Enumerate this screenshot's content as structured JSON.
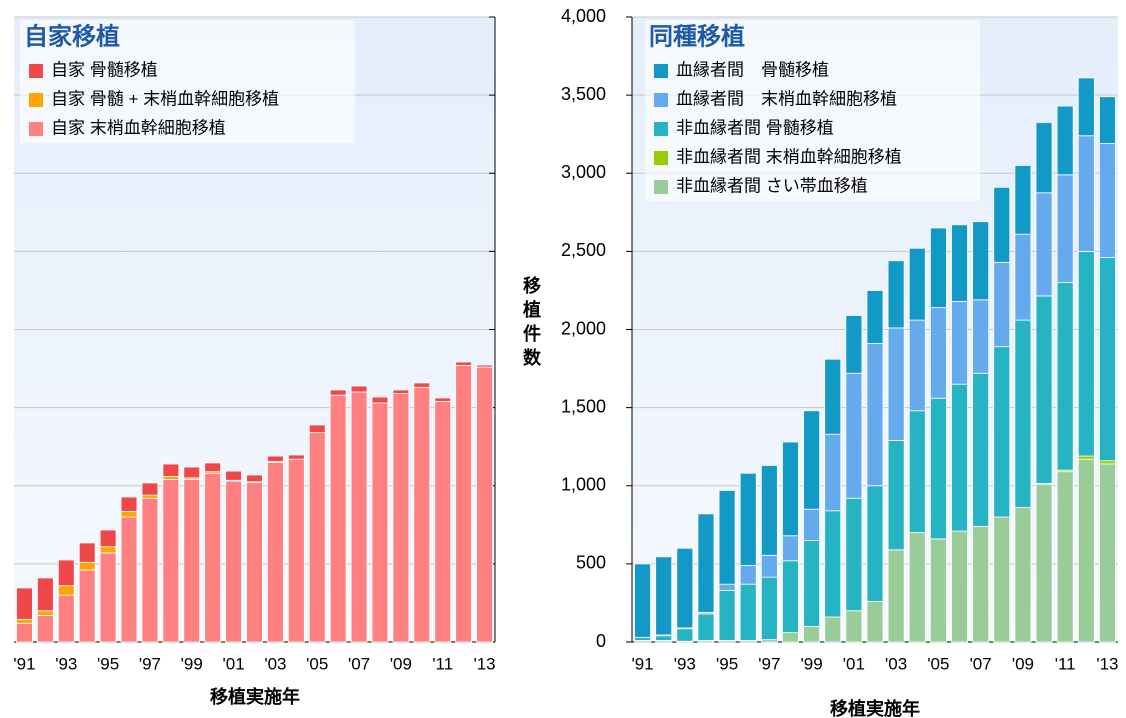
{
  "chart_data": [
    {
      "type": "stacked_bar",
      "title": "自家移植",
      "xlabel": "移植実施年",
      "categories": [
        "'91",
        null,
        "'93",
        null,
        "'95",
        null,
        "'97",
        null,
        "'99",
        null,
        "'01",
        null,
        "'03",
        null,
        "'05",
        null,
        "'07",
        null,
        "'09",
        null,
        "'11",
        null,
        "'13"
      ],
      "ylim": [
        0,
        4000
      ],
      "series": [
        {
          "name": "自家 骨髄移植",
          "color": "#f04848",
          "values": [
            201,
            210,
            165,
            124,
            107,
            93,
            78,
            79,
            70,
            56,
            59,
            44,
            35,
            27,
            49,
            33,
            38,
            38,
            23,
            28,
            22,
            22,
            13
          ]
        },
        {
          "name": "自家 骨髄 + 末梢血幹細胞移植",
          "color": "#ffa500",
          "values": [
            25,
            30,
            60,
            50,
            40,
            35,
            20,
            20,
            10,
            10,
            5,
            5,
            5,
            0,
            0,
            0,
            0,
            0,
            0,
            0,
            0,
            0,
            0
          ]
        },
        {
          "name": "自家 末梢血幹細胞移植",
          "color": "#ff8080",
          "values": [
            120,
            170,
            300,
            460,
            570,
            800,
            920,
            1040,
            1040,
            1080,
            1030,
            1020,
            1150,
            1170,
            1340,
            1580,
            1600,
            1530,
            1590,
            1630,
            1540,
            1770,
            1760
          ]
        }
      ]
    },
    {
      "type": "stacked_bar",
      "title": "同種移植",
      "xlabel": "移植実施年",
      "ylabel": "移植件数",
      "categories": [
        "'91",
        null,
        "'93",
        null,
        "'95",
        null,
        "'97",
        null,
        "'99",
        null,
        "'01",
        null,
        "'03",
        null,
        "'05",
        null,
        "'07",
        null,
        "'09",
        null,
        "'11",
        null,
        "'13"
      ],
      "ylim": [
        0,
        4000
      ],
      "yticks": [
        0,
        500,
        {
          "value": 1000,
          "label": "1,000"
        },
        {
          "value": 1500,
          "label": "1,500"
        },
        {
          "value": 2000,
          "label": "2,000"
        },
        {
          "value": 2500,
          "label": "2,500"
        },
        {
          "value": 3000,
          "label": "3,000"
        },
        {
          "value": 3500,
          "label": "3,500"
        },
        {
          "value": 4000,
          "label": "4,000"
        }
      ],
      "grid": true,
      "series": [
        {
          "name": "血縁者間　骨髄移植",
          "color": "#1399c6",
          "values": [
            470,
            500,
            510,
            630,
            600,
            590,
            575,
            600,
            630,
            480,
            370,
            340,
            430,
            460,
            510,
            490,
            500,
            480,
            440,
            450,
            440,
            370,
            300
          ]
        },
        {
          "name": "血縁者間　末梢血幹細胞移植",
          "color": "#66aaee",
          "values": [
            0,
            5,
            5,
            10,
            40,
            120,
            140,
            160,
            200,
            490,
            800,
            910,
            720,
            580,
            580,
            530,
            470,
            540,
            550,
            660,
            690,
            740,
            730
          ]
        },
        {
          "name": "非血縁者間 骨髄移植",
          "color": "#26b3c4",
          "values": [
            20,
            30,
            80,
            170,
            320,
            360,
            400,
            460,
            550,
            680,
            720,
            740,
            700,
            780,
            900,
            940,
            980,
            1090,
            1200,
            1200,
            1200,
            1310,
            1300
          ]
        },
        {
          "name": "非血縁者間 末梢血幹細胞移植",
          "color": "#99cc00",
          "values": [
            0,
            0,
            0,
            0,
            0,
            0,
            0,
            0,
            0,
            0,
            0,
            0,
            0,
            0,
            0,
            0,
            0,
            0,
            0,
            5,
            10,
            20,
            20
          ]
        },
        {
          "name": "非血縁者間 さい帯血移植",
          "color": "#99cc99",
          "values": [
            10,
            10,
            5,
            10,
            10,
            10,
            15,
            60,
            100,
            160,
            200,
            260,
            590,
            700,
            660,
            710,
            740,
            800,
            860,
            1010,
            1090,
            1170,
            1140
          ]
        }
      ]
    }
  ]
}
